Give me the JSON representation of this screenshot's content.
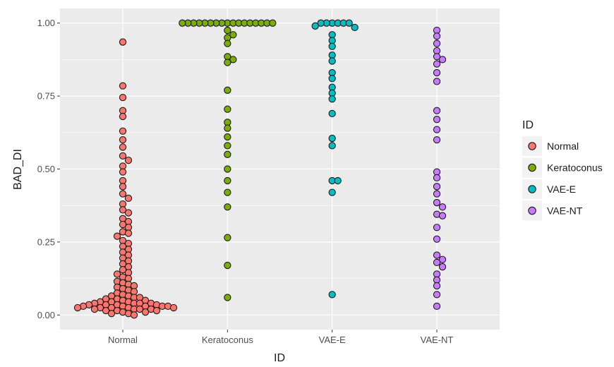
{
  "chart_data": {
    "type": "scatter",
    "xlabel": "ID",
    "ylabel": "BAD_DI",
    "categories": [
      "Normal",
      "Keratoconus",
      "VAE-E",
      "VAE-NT"
    ],
    "ylim": [
      -0.05,
      1.05
    ],
    "yticks": [
      "0.00",
      "0.25",
      "0.50",
      "0.75",
      "1.00"
    ],
    "grid": true,
    "legend": {
      "title": "ID",
      "placement": "right"
    },
    "series": [
      {
        "name": "Normal",
        "color": "#F8766D",
        "values": [
          0.935,
          0.785,
          0.745,
          0.7,
          0.68,
          0.63,
          0.6,
          0.575,
          0.545,
          0.53,
          0.51,
          0.49,
          0.46,
          0.44,
          0.415,
          0.4,
          0.38,
          0.36,
          0.35,
          0.33,
          0.32,
          0.31,
          0.3,
          0.285,
          0.28,
          0.27,
          0.255,
          0.245,
          0.235,
          0.225,
          0.215,
          0.205,
          0.195,
          0.185,
          0.175,
          0.165,
          0.155,
          0.145,
          0.14,
          0.13,
          0.125,
          0.115,
          0.11,
          0.105,
          0.1,
          0.095,
          0.09,
          0.085,
          0.08,
          0.075,
          0.07,
          0.065,
          0.065,
          0.06,
          0.06,
          0.055,
          0.055,
          0.05,
          0.05,
          0.045,
          0.045,
          0.045,
          0.04,
          0.04,
          0.04,
          0.04,
          0.035,
          0.035,
          0.035,
          0.035,
          0.03,
          0.03,
          0.03,
          0.03,
          0.03,
          0.025,
          0.025,
          0.025,
          0.025,
          0.025,
          0.02,
          0.02,
          0.02,
          0.02,
          0.015,
          0.015,
          0.015,
          0.01,
          0.01,
          0.005,
          0.005,
          0.0
        ]
      },
      {
        "name": "Keratoconus",
        "color": "#7CAE00",
        "values": [
          1.0,
          1.0,
          1.0,
          1.0,
          1.0,
          1.0,
          1.0,
          1.0,
          1.0,
          1.0,
          1.0,
          1.0,
          1.0,
          1.0,
          1.0,
          1.0,
          1.0,
          0.975,
          0.96,
          0.95,
          0.93,
          0.885,
          0.875,
          0.865,
          0.77,
          0.705,
          0.66,
          0.64,
          0.61,
          0.58,
          0.55,
          0.5,
          0.46,
          0.42,
          0.37,
          0.265,
          0.17,
          0.06
        ]
      },
      {
        "name": "VAE-E",
        "color": "#00BFC4",
        "values": [
          1.0,
          1.0,
          1.0,
          1.0,
          1.0,
          1.0,
          0.99,
          0.985,
          0.96,
          0.94,
          0.92,
          0.89,
          0.87,
          0.83,
          0.81,
          0.78,
          0.76,
          0.74,
          0.69,
          0.605,
          0.58,
          0.46,
          0.46,
          0.42,
          0.07
        ]
      },
      {
        "name": "VAE-NT",
        "color": "#C77CFF",
        "values": [
          0.975,
          0.955,
          0.93,
          0.905,
          0.885,
          0.875,
          0.86,
          0.83,
          0.8,
          0.7,
          0.67,
          0.635,
          0.6,
          0.49,
          0.47,
          0.44,
          0.415,
          0.385,
          0.37,
          0.345,
          0.34,
          0.3,
          0.26,
          0.205,
          0.19,
          0.18,
          0.165,
          0.14,
          0.12,
          0.1,
          0.07,
          0.03
        ]
      }
    ]
  }
}
